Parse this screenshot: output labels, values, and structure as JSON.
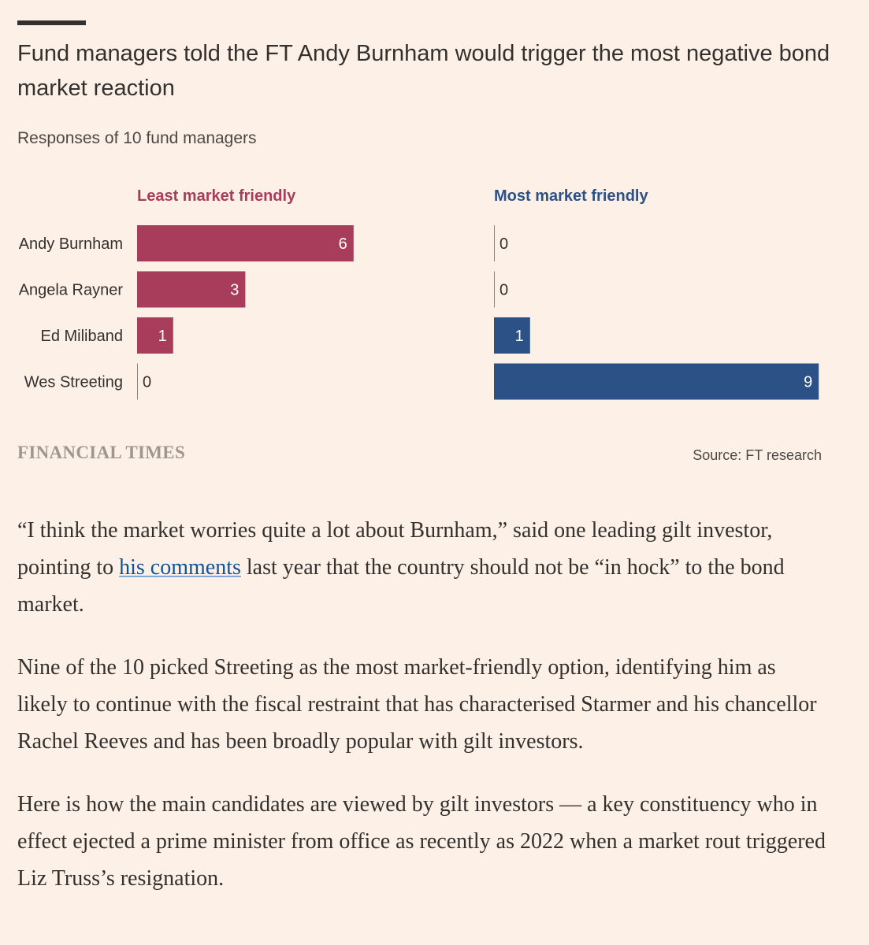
{
  "title": "Fund managers told the FT Andy Burnham would trigger the most negative bond market reaction",
  "subtitle": "Responses of 10 fund managers",
  "colors": {
    "least": "#a83c5b",
    "most": "#2c5186",
    "background": "#fdf1e7"
  },
  "chart_data": {
    "type": "bar",
    "orientation": "horizontal",
    "categories": [
      "Andy Burnham",
      "Angela Rayner",
      "Ed Miliband",
      "Wes Streeting"
    ],
    "panels": [
      {
        "name": "Least market friendly",
        "values": [
          6,
          3,
          1,
          0
        ],
        "color": "#a83c5b"
      },
      {
        "name": "Most market friendly",
        "values": [
          0,
          0,
          1,
          9
        ],
        "color": "#2c5186"
      }
    ],
    "xlim": [
      0,
      9
    ],
    "grid": false,
    "data_labels": true
  },
  "footer": {
    "logo": "FINANCIAL TIMES",
    "source": "Source: FT research"
  },
  "article": {
    "p1_before": "“I think the market worries quite a lot about Burnham,” said one leading gilt investor, pointing to ",
    "p1_link": "his comments",
    "p1_after": " last year that the country should not be “in hock” to the bond market.",
    "p2": "Nine of the 10 picked Streeting as the most market-friendly option, identifying him as likely to continue with the fiscal restraint that has characterised Starmer and his chancellor Rachel Reeves and has been broadly popular with gilt investors.",
    "p3": "Here is how the main candidates are viewed by gilt investors — a key constituency who in effect ejected a prime minister from office as recently as 2022 when a market rout triggered Liz Truss’s resignation."
  }
}
